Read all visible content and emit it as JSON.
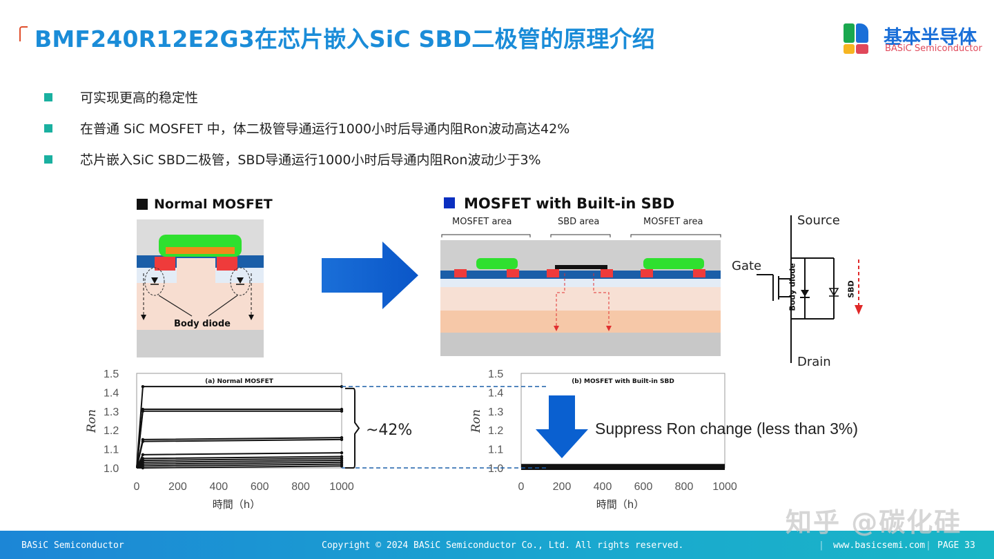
{
  "title": "BMF240R12E2G3在芯片嵌入SiC SBD二极管的原理介绍",
  "logo": {
    "cn": "基本半导体",
    "en": "BASiC Semiconductor",
    "colors": [
      "#1aa84f",
      "#1a6fd8",
      "#f6b521",
      "#e0485a"
    ]
  },
  "bullets": [
    "可实现更高的稳定性",
    "在普通 SiC MOSFET 中，体二极管导通运行1000小时后导通内阻Ron波动高达42%",
    "芯片嵌入SiC SBD二极管，SBD导通运行1000小时后导通内阻Ron波动少于3%"
  ],
  "diagram_left": {
    "title": "Normal MOSFET",
    "label": "Body diode"
  },
  "diagram_right": {
    "title": "MOSFET with Built-in SBD",
    "areas": [
      "MOSFET area",
      "SBD area",
      "MOSFET area"
    ]
  },
  "circuit": {
    "source": "Source",
    "gate": "Gate",
    "drain": "Drain",
    "body": "Body diode",
    "sbd": "SBD"
  },
  "chart_data": [
    {
      "type": "line",
      "title": "(a) Normal MOSFET",
      "xlabel": "時間（h）",
      "ylabel": "Ron",
      "xlim": [
        0,
        1000
      ],
      "ylim": [
        1.0,
        1.5
      ],
      "xticks": [
        "0",
        "200",
        "400",
        "600",
        "800",
        "1000"
      ],
      "yticks": [
        "1.0",
        "1.1",
        "1.2",
        "1.3",
        "1.4",
        "1.5"
      ],
      "x": [
        0,
        30,
        1000
      ],
      "series": [
        {
          "values": [
            1.0,
            1.43,
            1.43
          ]
        },
        {
          "values": [
            1.0,
            1.31,
            1.31
          ]
        },
        {
          "values": [
            1.0,
            1.3,
            1.3
          ]
        },
        {
          "values": [
            1.0,
            1.15,
            1.16
          ]
        },
        {
          "values": [
            1.0,
            1.14,
            1.15
          ]
        },
        {
          "values": [
            1.0,
            1.07,
            1.08
          ]
        },
        {
          "values": [
            1.0,
            1.05,
            1.06
          ]
        },
        {
          "values": [
            1.0,
            1.04,
            1.05
          ]
        },
        {
          "values": [
            1.0,
            1.03,
            1.04
          ]
        },
        {
          "values": [
            1.0,
            1.02,
            1.03
          ]
        },
        {
          "values": [
            1.0,
            1.01,
            1.02
          ]
        },
        {
          "values": [
            1.0,
            1.0,
            1.01
          ]
        }
      ],
      "annotation": "~42%"
    },
    {
      "type": "line",
      "title": "(b) MOSFET with Built-in SBD",
      "xlabel": "時間（h）",
      "ylabel": "Ron",
      "xlim": [
        0,
        1000
      ],
      "ylim": [
        1.0,
        1.5
      ],
      "xticks": [
        "0",
        "200",
        "400",
        "600",
        "800",
        "1000"
      ],
      "yticks": [
        "1.0",
        "1.1",
        "1.2",
        "1.3",
        "1.4",
        "1.5"
      ],
      "x": [
        0,
        1000
      ],
      "series": [
        {
          "values": [
            1.0,
            1.0
          ]
        },
        {
          "values": [
            1.01,
            1.01
          ]
        }
      ],
      "annotation": "Suppress Ron change (less than 3%)"
    }
  ],
  "footer": {
    "left": "BASiC Semiconductor",
    "center": "Copyright © 2024 BASiC Semiconductor Co., Ltd. All rights reserved.",
    "url": "www.basicsemi.com",
    "page": "PAGE 33"
  },
  "watermark": "知乎 @碳化硅"
}
